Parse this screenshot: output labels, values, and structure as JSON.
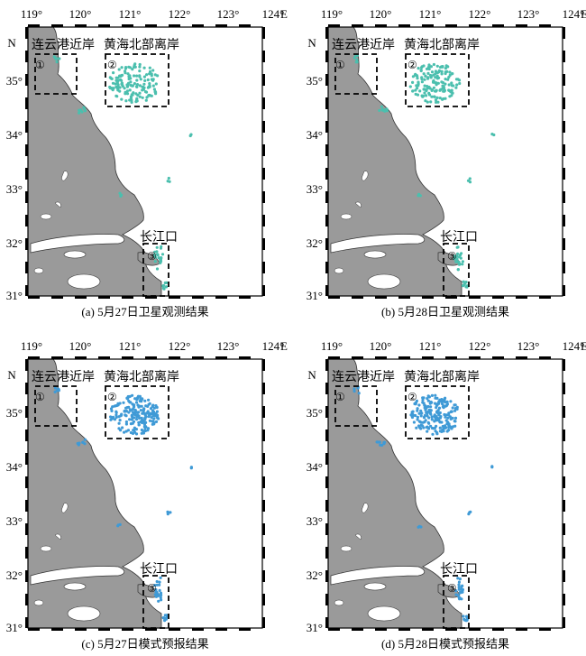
{
  "axis": {
    "lon_ticks": [
      "119°",
      "120°",
      "121°",
      "122°",
      "123°",
      "124°"
    ],
    "lon_unit": "E",
    "lat_ticks": [
      "35°",
      "34°",
      "33°",
      "32°",
      "31°"
    ],
    "lat_unit": "N"
  },
  "regions": {
    "r1": {
      "label": "连云港近岸",
      "marker": "①"
    },
    "r2": {
      "label": "黄海北部离岸",
      "marker": "②"
    },
    "r3": {
      "label": "长江口",
      "marker": "③"
    }
  },
  "panels": [
    {
      "caption": "(a) 5月27日卫星观测结果",
      "type": "satellite",
      "dot_color": "#4bbfae"
    },
    {
      "caption": "(b) 5月28日卫星观测结果",
      "type": "satellite",
      "dot_color": "#4bbfae"
    },
    {
      "caption": "(c) 5月27日模式预报结果",
      "type": "model",
      "dot_color": "#3f9ad6"
    },
    {
      "caption": "(d) 5月28日模式预报结果",
      "type": "model",
      "dot_color": "#3f9ad6"
    }
  ],
  "colors": {
    "land": "#9a9a9a",
    "sea": "#ffffff",
    "frame": "#000000"
  }
}
